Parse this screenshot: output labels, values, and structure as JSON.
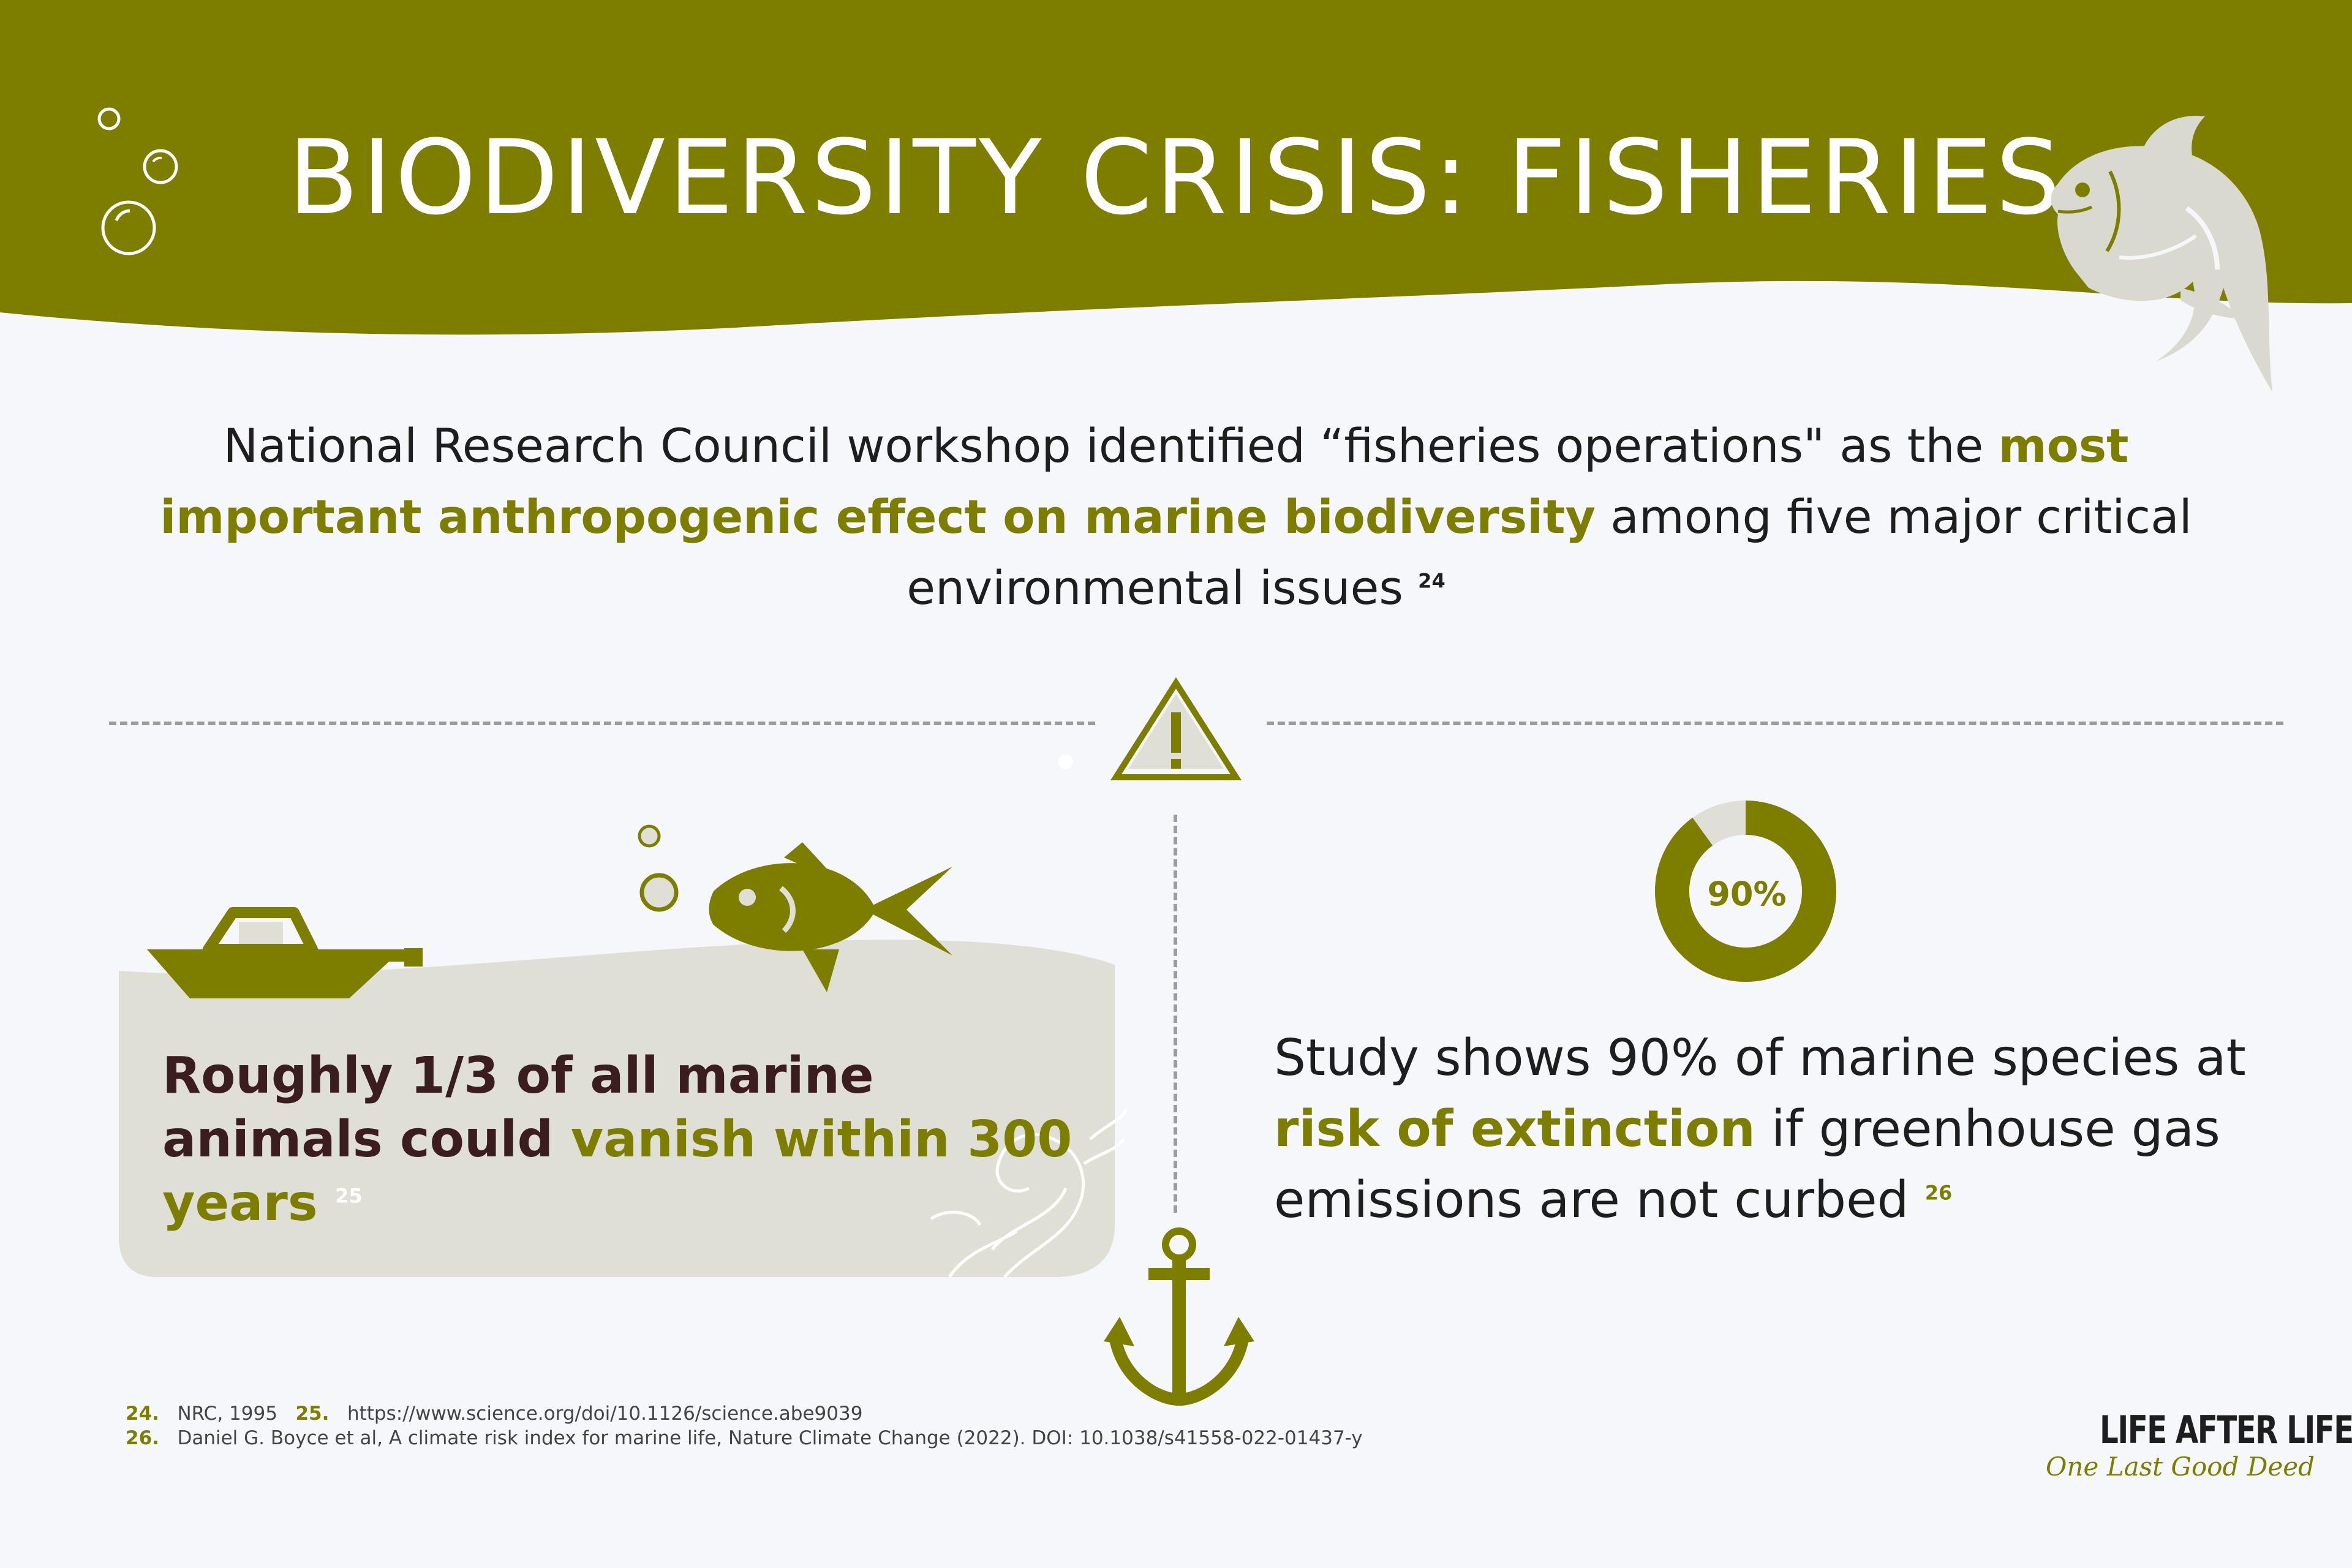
{
  "header": {
    "title": "BIODIVERSITY CRISIS: FISHERIES"
  },
  "intro": {
    "text_before": "National Research Council workshop identified “fisheries operations\" as the ",
    "highlight": "most important anthropogenic effect on marine biodiversity",
    "text_after": " among five major critical environmental issues",
    "ref": "24"
  },
  "left_card": {
    "text_before": "Roughly 1/3 of all marine animals could ",
    "highlight": "vanish within 300 years",
    "ref": "25"
  },
  "right_panel": {
    "donut_label": "90%",
    "donut_fraction": 0.9,
    "text_before": "Study shows 90% of marine species at ",
    "highlight": "risk of extinction",
    "text_after": " if greenhouse gas emissions are not curbed",
    "ref": "26"
  },
  "footnotes": {
    "n24": "24.",
    "t24": "NRC, 1995",
    "n25": "25.",
    "t25": "https://www.science.org/doi/10.1126/science.abe9039",
    "n26": "26.",
    "t26": "Daniel G. Boyce et al, A climate risk index for marine life, Nature Climate Change (2022). DOI: 10.1038/s41558-022-01437-y"
  },
  "brand": {
    "name": "LIFE AFTER LIFE",
    "tagline": "One Last Good Deed"
  },
  "colors": {
    "olive": "#7d7d00",
    "header_green": "#7d7d00",
    "card_beige": "#dfdfd6",
    "background": "#f6f7fb",
    "dark_maroon": "#3b1d1d",
    "fish_light": "#d9d9cf"
  },
  "icons": [
    "bubbles-icon",
    "leaping-fish-icon",
    "warning-triangle-icon",
    "boat-icon",
    "fish-icon",
    "anchor-icon",
    "wave-icon",
    "donut-chart"
  ]
}
